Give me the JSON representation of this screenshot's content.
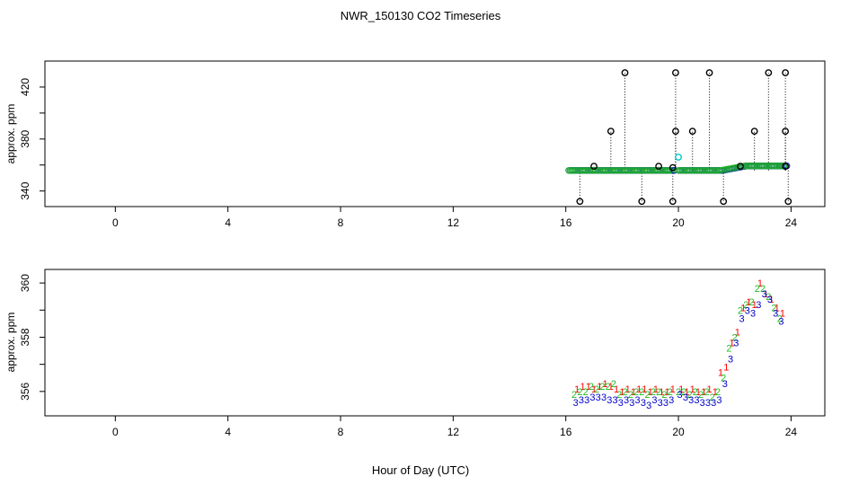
{
  "title": "NWR_150130  CO2 Timeseries",
  "xlabel": "Hour of Day (UTC)",
  "colors": {
    "black": "#000000",
    "red": "#ff0000",
    "green": "#22bb22",
    "blue": "#0000cc",
    "cyan": "#00c8c8"
  },
  "chart_data": [
    {
      "type": "scatter",
      "title": "NWR_150130  CO2 Timeseries",
      "xlabel": "",
      "ylabel": "approx. ppm",
      "xlim": [
        -2.5,
        25.2
      ],
      "ylim": [
        328,
        440
      ],
      "xticks": [
        0,
        4,
        8,
        12,
        16,
        20,
        24
      ],
      "yticks": [
        340,
        380,
        420
      ],
      "baseline": 355.8,
      "baseline_segments": [
        [
          16.1,
          19.8
        ],
        [
          20.0,
          21.5
        ],
        [
          21.5,
          23.8
        ]
      ],
      "outliers": [
        {
          "x": 16.5,
          "y": 332
        },
        {
          "x": 17.0,
          "y": 359
        },
        {
          "x": 17.6,
          "y": 386
        },
        {
          "x": 18.1,
          "y": 431
        },
        {
          "x": 18.7,
          "y": 332
        },
        {
          "x": 19.3,
          "y": 359
        },
        {
          "x": 19.8,
          "y": 332
        },
        {
          "x": 19.8,
          "y": 358
        },
        {
          "x": 19.9,
          "y": 386
        },
        {
          "x": 19.9,
          "y": 431
        },
        {
          "x": 20.5,
          "y": 386
        },
        {
          "x": 21.1,
          "y": 431
        },
        {
          "x": 21.6,
          "y": 332
        },
        {
          "x": 22.2,
          "y": 359
        },
        {
          "x": 22.7,
          "y": 386
        },
        {
          "x": 23.2,
          "y": 431
        },
        {
          "x": 23.8,
          "y": 431
        },
        {
          "x": 23.8,
          "y": 386
        },
        {
          "x": 23.8,
          "y": 359
        },
        {
          "x": 23.9,
          "y": 332
        }
      ],
      "highlight": {
        "x": 20.0,
        "y": 366
      }
    },
    {
      "type": "scatter",
      "xlabel": "Hour of Day (UTC)",
      "ylabel": "approx. ppm",
      "xlim": [
        -2.5,
        25.2
      ],
      "ylim": [
        355.1,
        360.5
      ],
      "xticks": [
        0,
        4,
        8,
        12,
        16,
        20,
        24
      ],
      "yticks": [
        356,
        358,
        360
      ],
      "series": [
        {
          "name": "1",
          "color": "#ff0000",
          "x": [
            16.4,
            16.6,
            16.8,
            17.0,
            17.2,
            17.4,
            17.6,
            17.8,
            18.0,
            18.2,
            18.4,
            18.6,
            18.8,
            19.0,
            19.2,
            19.4,
            19.6,
            19.8,
            20.1,
            20.3,
            20.5,
            20.7,
            20.9,
            21.1,
            21.3,
            21.5,
            21.7,
            21.9,
            22.1,
            22.3,
            22.5,
            22.7,
            22.9,
            23.1,
            23.3,
            23.5,
            23.7
          ],
          "y": [
            356.1,
            356.2,
            356.2,
            356.1,
            356.2,
            356.3,
            356.2,
            356.1,
            356.0,
            356.1,
            356.0,
            356.1,
            356.1,
            356.0,
            356.1,
            356.0,
            356.0,
            356.1,
            356.1,
            356.0,
            356.1,
            356.0,
            356.0,
            356.1,
            356.0,
            356.7,
            356.9,
            357.8,
            358.2,
            359.1,
            359.3,
            359.2,
            360.0,
            359.6,
            359.4,
            359.1,
            358.9
          ]
        },
        {
          "name": "2",
          "color": "#22bb22",
          "x": [
            16.3,
            16.5,
            16.7,
            16.9,
            17.1,
            17.3,
            17.5,
            17.7,
            17.9,
            18.1,
            18.3,
            18.5,
            18.7,
            18.9,
            19.1,
            19.3,
            19.5,
            19.7,
            20.0,
            20.2,
            20.4,
            20.6,
            20.8,
            21.0,
            21.2,
            21.4,
            21.6,
            21.8,
            22.0,
            22.2,
            22.4,
            22.6,
            22.8,
            23.0,
            23.2,
            23.4,
            23.6
          ],
          "y": [
            355.9,
            356.0,
            356.0,
            356.2,
            356.1,
            356.2,
            356.2,
            356.3,
            355.9,
            356.0,
            355.9,
            356.0,
            356.0,
            355.9,
            356.0,
            356.0,
            355.9,
            356.0,
            356.0,
            356.0,
            355.9,
            356.0,
            355.9,
            356.0,
            355.8,
            356.0,
            356.5,
            357.6,
            358.0,
            359.0,
            359.2,
            359.3,
            359.8,
            359.8,
            359.5,
            359.1,
            358.7
          ]
        },
        {
          "name": "3",
          "color": "#0000cc",
          "x": [
            16.35,
            16.55,
            16.75,
            16.95,
            17.15,
            17.35,
            17.55,
            17.75,
            17.95,
            18.15,
            18.35,
            18.55,
            18.75,
            18.95,
            19.15,
            19.35,
            19.55,
            19.75,
            20.05,
            20.25,
            20.45,
            20.65,
            20.85,
            21.05,
            21.25,
            21.45,
            21.65,
            21.85,
            22.05,
            22.25,
            22.45,
            22.65,
            22.85,
            23.05,
            23.25,
            23.45,
            23.65
          ],
          "y": [
            355.6,
            355.7,
            355.7,
            355.8,
            355.8,
            355.8,
            355.7,
            355.7,
            355.6,
            355.7,
            355.6,
            355.7,
            355.6,
            355.5,
            355.7,
            355.6,
            355.6,
            355.7,
            355.9,
            355.8,
            355.7,
            355.7,
            355.6,
            355.6,
            355.6,
            355.7,
            356.3,
            357.2,
            357.8,
            358.7,
            359.0,
            358.9,
            359.2,
            359.6,
            359.4,
            358.9,
            358.6
          ]
        }
      ]
    }
  ]
}
